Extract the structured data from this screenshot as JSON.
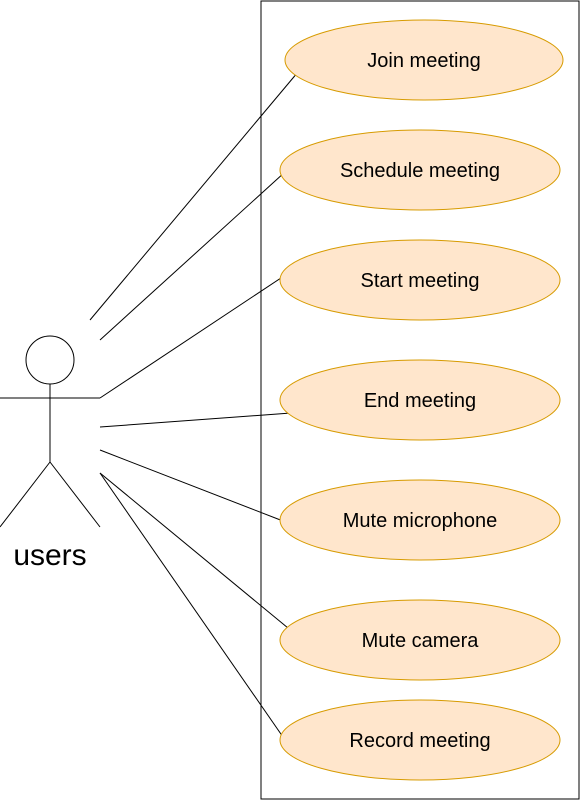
{
  "actor": {
    "label": "users"
  },
  "use_cases": [
    {
      "label": "Join meeting"
    },
    {
      "label": "Schedule meeting"
    },
    {
      "label": "Start meeting"
    },
    {
      "label": "End meeting"
    },
    {
      "label": "Mute microphone"
    },
    {
      "label": "Mute camera"
    },
    {
      "label": "Record meeting"
    }
  ],
  "colors": {
    "ellipse_fill": "#ffe6cc",
    "ellipse_stroke": "#d79b00",
    "line": "#000000",
    "boundary_stroke": "#000000"
  }
}
